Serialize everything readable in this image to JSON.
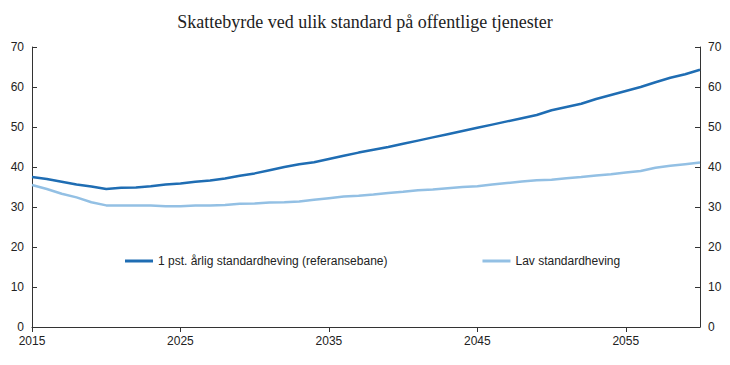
{
  "chart_data": {
    "type": "line",
    "title": "Skattebyrde ved ulik standard på offentlige tjenester",
    "x": [
      2015,
      2016,
      2017,
      2018,
      2019,
      2020,
      2021,
      2022,
      2023,
      2024,
      2025,
      2026,
      2027,
      2028,
      2029,
      2030,
      2031,
      2032,
      2033,
      2034,
      2035,
      2036,
      2037,
      2038,
      2039,
      2040,
      2041,
      2042,
      2043,
      2044,
      2045,
      2046,
      2047,
      2048,
      2049,
      2050,
      2051,
      2052,
      2053,
      2054,
      2055,
      2056,
      2057,
      2058,
      2059,
      2060
    ],
    "series": [
      {
        "name": "1 pst. årlig standardheving (referansebane)",
        "color": "#1f6db3",
        "values": [
          37.5,
          37.0,
          36.3,
          35.6,
          35.1,
          34.5,
          34.8,
          34.9,
          35.2,
          35.6,
          35.9,
          36.3,
          36.6,
          37.1,
          37.8,
          38.4,
          39.2,
          40.0,
          40.7,
          41.2,
          42.0,
          42.8,
          43.6,
          44.3,
          45.0,
          45.8,
          46.6,
          47.4,
          48.2,
          49.0,
          49.8,
          50.6,
          51.4,
          52.2,
          53.0,
          54.2,
          55.0,
          55.8,
          57.0,
          58.0,
          59.0,
          60.0,
          61.2,
          62.3,
          63.2,
          64.3
        ]
      },
      {
        "name": "Lav standardheving",
        "color": "#93c0e4",
        "values": [
          35.5,
          34.5,
          33.3,
          32.4,
          31.2,
          30.4,
          30.4,
          30.4,
          30.4,
          30.2,
          30.2,
          30.4,
          30.4,
          30.5,
          30.8,
          30.9,
          31.1,
          31.2,
          31.4,
          31.8,
          32.2,
          32.6,
          32.8,
          33.1,
          33.5,
          33.8,
          34.2,
          34.4,
          34.7,
          35.0,
          35.2,
          35.6,
          36.0,
          36.4,
          36.7,
          36.8,
          37.2,
          37.5,
          37.9,
          38.2,
          38.6,
          39.0,
          39.8,
          40.3,
          40.7,
          41.1
        ]
      }
    ],
    "xlim": [
      2015,
      2060
    ],
    "xticks": [
      2015,
      2025,
      2035,
      2045,
      2055
    ],
    "ylim": [
      0,
      70
    ],
    "yticks": [
      0,
      10,
      20,
      30,
      40,
      50,
      60,
      70
    ],
    "y2lim": [
      0,
      70
    ],
    "y2ticks": [
      0,
      10,
      20,
      30,
      40,
      50,
      60,
      70
    ],
    "grid": false,
    "legend": "center"
  }
}
